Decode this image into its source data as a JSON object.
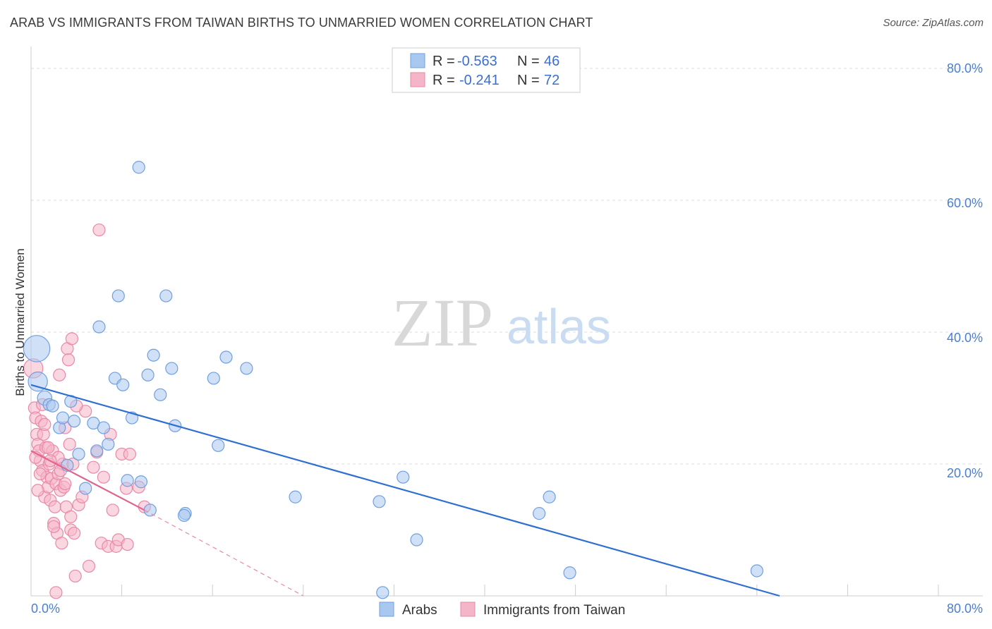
{
  "header": {
    "title": "ARAB VS IMMIGRANTS FROM TAIWAN BIRTHS TO UNMARRIED WOMEN CORRELATION CHART",
    "source": "Source: ZipAtlas.com"
  },
  "watermark": {
    "zip": "ZIP",
    "atlas": "atlas"
  },
  "legend": {
    "rows": [
      {
        "r_label": "R =",
        "r_value": "-0.563",
        "n_label": "N =",
        "n_value": "46"
      },
      {
        "r_label": "R =",
        "r_value": "-0.241",
        "n_label": "N =",
        "n_value": "72"
      }
    ]
  },
  "colors": {
    "arabs_fill": "#a9c8f0",
    "arabs_stroke": "#6f9fe0",
    "arabs_line": "#2f6fd0",
    "taiwan_fill": "#f5b5c8",
    "taiwan_stroke": "#e889a8",
    "taiwan_line": "#e0648f",
    "grid": "#dddddd",
    "axis_text": "#4a7fd0"
  },
  "chart_data": {
    "type": "scatter",
    "title": "ARAB VS IMMIGRANTS FROM TAIWAN BIRTHS TO UNMARRIED WOMEN CORRELATION CHART",
    "xlabel": "",
    "ylabel": "Births to Unmarried Women",
    "xlim": [
      0,
      80
    ],
    "ylim": [
      0,
      80
    ],
    "x_tick_labels": [
      "0.0%",
      "80.0%"
    ],
    "y_tick_labels": [
      "20.0%",
      "40.0%",
      "60.0%",
      "80.0%"
    ],
    "y_ticks": [
      20,
      40,
      60,
      80
    ],
    "grid": true,
    "legend_position": "top-center",
    "series": [
      {
        "name": "Arabs",
        "r": -0.563,
        "n": 46,
        "trend": {
          "x": [
            0,
            66
          ],
          "y": [
            32.0,
            0.0
          ],
          "dashed_to": null
        },
        "points": [
          {
            "x": 0.5,
            "y": 37.5,
            "s": 2.2
          },
          {
            "x": 0.6,
            "y": 32.5,
            "s": 1.6
          },
          {
            "x": 1.2,
            "y": 30.0,
            "s": 1.2
          },
          {
            "x": 1.6,
            "y": 29.0
          },
          {
            "x": 1.9,
            "y": 28.8
          },
          {
            "x": 2.5,
            "y": 25.5
          },
          {
            "x": 2.8,
            "y": 27.0
          },
          {
            "x": 3.2,
            "y": 19.8
          },
          {
            "x": 3.5,
            "y": 29.5
          },
          {
            "x": 3.8,
            "y": 26.5
          },
          {
            "x": 4.2,
            "y": 21.5
          },
          {
            "x": 4.8,
            "y": 16.3
          },
          {
            "x": 5.5,
            "y": 26.2
          },
          {
            "x": 5.8,
            "y": 22.0
          },
          {
            "x": 6.0,
            "y": 40.8
          },
          {
            "x": 6.4,
            "y": 25.5
          },
          {
            "x": 6.8,
            "y": 23.0
          },
          {
            "x": 7.4,
            "y": 33.0
          },
          {
            "x": 7.7,
            "y": 45.5
          },
          {
            "x": 8.1,
            "y": 32.0
          },
          {
            "x": 8.5,
            "y": 17.5
          },
          {
            "x": 8.9,
            "y": 27.0
          },
          {
            "x": 9.5,
            "y": 65.0
          },
          {
            "x": 9.7,
            "y": 17.3
          },
          {
            "x": 10.3,
            "y": 33.5
          },
          {
            "x": 10.5,
            "y": 13.0
          },
          {
            "x": 10.8,
            "y": 36.5
          },
          {
            "x": 11.4,
            "y": 30.5
          },
          {
            "x": 11.9,
            "y": 45.5
          },
          {
            "x": 12.4,
            "y": 34.5
          },
          {
            "x": 12.7,
            "y": 25.8
          },
          {
            "x": 13.6,
            "y": 12.5
          },
          {
            "x": 16.1,
            "y": 33.0
          },
          {
            "x": 16.5,
            "y": 22.8
          },
          {
            "x": 17.2,
            "y": 36.2
          },
          {
            "x": 19.0,
            "y": 34.5
          },
          {
            "x": 23.3,
            "y": 15.0
          },
          {
            "x": 30.7,
            "y": 14.3
          },
          {
            "x": 31.0,
            "y": 0.5
          },
          {
            "x": 32.8,
            "y": 18.0
          },
          {
            "x": 34.0,
            "y": 8.5
          },
          {
            "x": 44.8,
            "y": 12.5
          },
          {
            "x": 45.7,
            "y": 15.0
          },
          {
            "x": 47.5,
            "y": 3.5
          },
          {
            "x": 64.0,
            "y": 3.8
          },
          {
            "x": 13.5,
            "y": 12.2
          }
        ]
      },
      {
        "name": "Immigrants from Taiwan",
        "r": -0.241,
        "n": 72,
        "trend": {
          "x": [
            0,
            10
          ],
          "y": [
            22.0,
            13.0
          ],
          "dashed_to": [
            24,
            0
          ]
        },
        "points": [
          {
            "x": 0.2,
            "y": 34.5,
            "s": 1.6
          },
          {
            "x": 0.3,
            "y": 28.5
          },
          {
            "x": 0.4,
            "y": 27.0
          },
          {
            "x": 0.5,
            "y": 24.5
          },
          {
            "x": 0.6,
            "y": 23.0
          },
          {
            "x": 0.7,
            "y": 22.0
          },
          {
            "x": 0.8,
            "y": 20.5
          },
          {
            "x": 0.9,
            "y": 26.5
          },
          {
            "x": 1.0,
            "y": 19.0
          },
          {
            "x": 1.1,
            "y": 24.5
          },
          {
            "x": 1.2,
            "y": 15.0
          },
          {
            "x": 1.3,
            "y": 22.5
          },
          {
            "x": 1.4,
            "y": 18.0
          },
          {
            "x": 1.5,
            "y": 16.5
          },
          {
            "x": 1.6,
            "y": 20.0
          },
          {
            "x": 1.7,
            "y": 14.5
          },
          {
            "x": 1.8,
            "y": 17.8
          },
          {
            "x": 1.9,
            "y": 22.0
          },
          {
            "x": 2.0,
            "y": 11.0
          },
          {
            "x": 2.1,
            "y": 13.5
          },
          {
            "x": 2.2,
            "y": 17.0
          },
          {
            "x": 2.3,
            "y": 9.5
          },
          {
            "x": 2.4,
            "y": 18.5
          },
          {
            "x": 2.5,
            "y": 33.5
          },
          {
            "x": 2.6,
            "y": 16.0
          },
          {
            "x": 2.7,
            "y": 8.0
          },
          {
            "x": 2.8,
            "y": 20.0
          },
          {
            "x": 2.9,
            "y": 16.5
          },
          {
            "x": 3.0,
            "y": 25.5
          },
          {
            "x": 3.1,
            "y": 13.5
          },
          {
            "x": 3.2,
            "y": 37.5
          },
          {
            "x": 3.3,
            "y": 35.8
          },
          {
            "x": 3.4,
            "y": 23.0
          },
          {
            "x": 3.5,
            "y": 10.0
          },
          {
            "x": 3.6,
            "y": 39.0
          },
          {
            "x": 3.7,
            "y": 20.0
          },
          {
            "x": 3.8,
            "y": 9.5
          },
          {
            "x": 3.9,
            "y": 3.0
          },
          {
            "x": 4.2,
            "y": 13.8
          },
          {
            "x": 4.5,
            "y": 15.0
          },
          {
            "x": 4.8,
            "y": 28.0
          },
          {
            "x": 5.1,
            "y": 4.5
          },
          {
            "x": 5.5,
            "y": 19.5
          },
          {
            "x": 6.0,
            "y": 55.5
          },
          {
            "x": 6.2,
            "y": 8.0
          },
          {
            "x": 6.8,
            "y": 7.5
          },
          {
            "x": 7.0,
            "y": 24.5
          },
          {
            "x": 7.2,
            "y": 13.0
          },
          {
            "x": 7.5,
            "y": 7.5
          },
          {
            "x": 7.7,
            "y": 8.5
          },
          {
            "x": 8.0,
            "y": 21.5
          },
          {
            "x": 8.4,
            "y": 16.3
          },
          {
            "x": 8.7,
            "y": 21.5
          },
          {
            "x": 9.5,
            "y": 16.5
          },
          {
            "x": 10.0,
            "y": 13.5
          },
          {
            "x": 2.2,
            "y": 0.5
          },
          {
            "x": 0.4,
            "y": 21.0
          },
          {
            "x": 1.0,
            "y": 29.0
          },
          {
            "x": 1.5,
            "y": 22.5
          },
          {
            "x": 2.4,
            "y": 21.0
          },
          {
            "x": 3.0,
            "y": 17.0
          },
          {
            "x": 4.0,
            "y": 28.8
          },
          {
            "x": 5.8,
            "y": 21.8
          },
          {
            "x": 6.4,
            "y": 18.0
          },
          {
            "x": 8.5,
            "y": 7.8
          },
          {
            "x": 1.2,
            "y": 26.0
          },
          {
            "x": 0.8,
            "y": 18.5
          },
          {
            "x": 2.0,
            "y": 10.5
          },
          {
            "x": 3.5,
            "y": 12.0
          },
          {
            "x": 1.7,
            "y": 20.5
          },
          {
            "x": 0.6,
            "y": 16.0
          },
          {
            "x": 2.6,
            "y": 19.0
          }
        ]
      }
    ]
  },
  "bottom_legend": {
    "items": [
      "Arabs",
      "Immigrants from Taiwan"
    ]
  }
}
